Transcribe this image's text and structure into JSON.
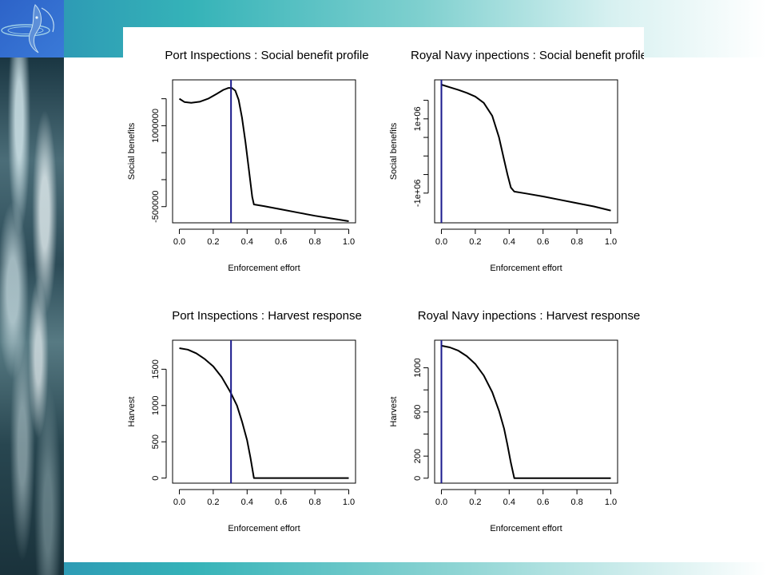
{
  "slide": {
    "colors": {
      "band_start": "#2a8fb3",
      "band_end": "#ffffff",
      "logo_bg": "#2d63c8",
      "curve": "#000000",
      "marker_line": "#1a1a8c"
    },
    "logo_icon": "fish-logo-icon",
    "side_image": "ocean-waves-photo"
  },
  "chart_data": [
    {
      "type": "line",
      "title": "Port Inspections : Social benefit profile",
      "xlabel": "Enforcement effort",
      "ylabel": "Social benefits",
      "xlim": [
        -0.04,
        1.04
      ],
      "ylim": [
        -800000,
        1850000
      ],
      "x_ticks": [
        0.0,
        0.2,
        0.4,
        0.6,
        0.8,
        1.0
      ],
      "x_tick_labels": [
        "0.0",
        "0.2",
        "0.4",
        "0.6",
        "0.8",
        "1.0"
      ],
      "y_ticks": [
        -500000,
        0,
        500000,
        1000000,
        1500000
      ],
      "y_tick_labels": [
        "-500000",
        "",
        "",
        "1000000",
        ""
      ],
      "vline": 0.305,
      "series": [
        {
          "x": [
            0.0,
            0.03,
            0.07,
            0.12,
            0.17,
            0.22,
            0.26,
            0.29,
            0.31,
            0.33,
            0.35,
            0.37,
            0.39,
            0.41,
            0.43,
            0.44,
            0.5,
            0.6,
            0.7,
            0.8,
            0.9,
            1.0
          ],
          "y": [
            1500000,
            1440000,
            1425000,
            1445000,
            1500000,
            1590000,
            1665000,
            1700000,
            1700000,
            1650000,
            1480000,
            1150000,
            700000,
            200000,
            -320000,
            -460000,
            -490000,
            -550000,
            -610000,
            -670000,
            -720000,
            -770000
          ]
        }
      ],
      "grid": false,
      "legend": "none"
    },
    {
      "type": "line",
      "title": "Royal Navy inpections : Social benefit profile",
      "xlabel": "Enforcement effort",
      "ylabel": "Social benefits",
      "xlim": [
        -0.04,
        1.04
      ],
      "ylim": [
        -1800000,
        2050000
      ],
      "x_ticks": [
        0.0,
        0.2,
        0.4,
        0.6,
        0.8,
        1.0
      ],
      "x_tick_labels": [
        "0.0",
        "0.2",
        "0.4",
        "0.6",
        "0.8",
        "1.0"
      ],
      "y_ticks": [
        -1000000,
        0,
        1000000
      ],
      "y_tick_labels": [
        "-1e+06",
        "",
        "1e+06"
      ],
      "y_minor_ticks": [
        -500000,
        500000,
        1500000
      ],
      "vline": 0.0,
      "series": [
        {
          "x": [
            0.0,
            0.05,
            0.1,
            0.15,
            0.2,
            0.25,
            0.3,
            0.34,
            0.37,
            0.39,
            0.41,
            0.43,
            0.5,
            0.6,
            0.7,
            0.8,
            0.9,
            1.0
          ],
          "y": [
            1920000,
            1850000,
            1780000,
            1700000,
            1600000,
            1430000,
            1080000,
            500000,
            -100000,
            -500000,
            -850000,
            -960000,
            -1010000,
            -1090000,
            -1180000,
            -1270000,
            -1360000,
            -1470000
          ]
        }
      ],
      "grid": false,
      "legend": "none"
    },
    {
      "type": "line",
      "title": "Port Inspections : Harvest response",
      "xlabel": "Enforcement effort",
      "ylabel": "Harvest",
      "xlim": [
        -0.04,
        1.04
      ],
      "ylim": [
        -70,
        1900
      ],
      "x_ticks": [
        0.0,
        0.2,
        0.4,
        0.6,
        0.8,
        1.0
      ],
      "x_tick_labels": [
        "0.0",
        "0.2",
        "0.4",
        "0.6",
        "0.8",
        "1.0"
      ],
      "y_ticks": [
        0,
        500,
        1000,
        1500
      ],
      "y_tick_labels": [
        "0",
        "500",
        "1000",
        "1500"
      ],
      "vline": 0.305,
      "series": [
        {
          "x": [
            0.0,
            0.05,
            0.1,
            0.15,
            0.2,
            0.25,
            0.3,
            0.34,
            0.37,
            0.4,
            0.42,
            0.44,
            0.5,
            0.6,
            0.7,
            0.8,
            0.9,
            1.0
          ],
          "y": [
            1790,
            1770,
            1720,
            1640,
            1540,
            1390,
            1190,
            1000,
            780,
            520,
            280,
            0,
            0,
            0,
            0,
            0,
            0,
            0
          ]
        }
      ],
      "grid": false,
      "legend": "none"
    },
    {
      "type": "line",
      "title": "Royal Navy inpections : Harvest response",
      "xlabel": "Enforcement effort",
      "ylabel": "Harvest",
      "xlim": [
        -0.04,
        1.04
      ],
      "ylim": [
        -45,
        1250
      ],
      "x_ticks": [
        0.0,
        0.2,
        0.4,
        0.6,
        0.8,
        1.0
      ],
      "x_tick_labels": [
        "0.0",
        "0.2",
        "0.4",
        "0.6",
        "0.8",
        "1.0"
      ],
      "y_ticks": [
        0,
        200,
        600,
        1000
      ],
      "y_tick_labels": [
        "0",
        "200",
        "600",
        "1000"
      ],
      "y_minor_ticks": [
        400,
        800
      ],
      "vline": 0.0,
      "series": [
        {
          "x": [
            0.0,
            0.05,
            0.1,
            0.15,
            0.2,
            0.25,
            0.3,
            0.34,
            0.37,
            0.39,
            0.41,
            0.43,
            0.5,
            0.6,
            0.7,
            0.8,
            0.9,
            1.0
          ],
          "y": [
            1200,
            1185,
            1155,
            1105,
            1035,
            930,
            780,
            610,
            450,
            300,
            140,
            0,
            0,
            0,
            0,
            0,
            0,
            0
          ]
        }
      ],
      "grid": false,
      "legend": "none"
    }
  ]
}
